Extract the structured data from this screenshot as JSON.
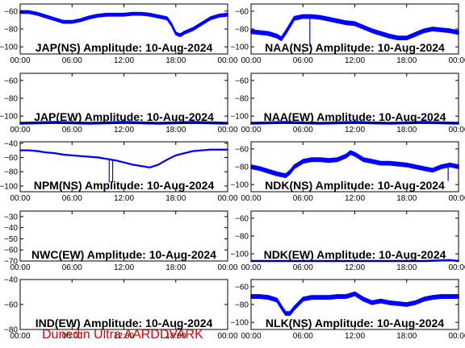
{
  "footer": "Dunedin Ultra AARDDVARK",
  "styles": {
    "trace_color": "#0000ff",
    "axis_color": "#000000",
    "footer_color": "#e00000"
  },
  "chart_data": [
    {
      "type": "line",
      "title": "JAP(NS) Amplitude: 10-Aug-2024",
      "xlim": [
        0,
        24
      ],
      "ylim": [
        -108,
        -52
      ],
      "xticks": [
        "00:00",
        "06:00",
        "12:00",
        "18:00",
        "00:00"
      ],
      "yticks": [
        -60,
        -80,
        -100
      ],
      "series": [
        {
          "x": [
            0,
            1,
            2,
            3,
            4,
            5,
            6,
            7,
            8,
            9,
            10,
            11,
            12,
            13,
            14,
            15,
            16,
            17,
            17.5,
            18,
            18.5,
            19,
            20,
            21,
            22,
            23,
            24
          ],
          "y": [
            -61,
            -61,
            -63,
            -66,
            -69,
            -72,
            -72,
            -70,
            -67,
            -65,
            -64,
            -64,
            -64,
            -63,
            -63,
            -64,
            -66,
            -68,
            -75,
            -85,
            -87,
            -84,
            -80,
            -74,
            -68,
            -65,
            -64
          ],
          "band": 3
        }
      ]
    },
    {
      "type": "line",
      "title": "NAA(NS) Amplitude: 10-Aug-2024",
      "xlim": [
        0,
        24
      ],
      "ylim": [
        -108,
        -52
      ],
      "xticks": [
        "00:00",
        "06:00",
        "12:00",
        "18:00",
        "00:00"
      ],
      "yticks": [
        -60,
        -80,
        -100
      ],
      "series": [
        {
          "x": [
            0,
            1,
            2,
            3,
            3.5,
            4,
            4.5,
            5,
            6,
            7,
            8,
            9,
            10,
            11,
            12,
            13,
            14,
            15,
            16,
            17,
            18,
            19,
            20,
            21,
            22,
            23,
            24
          ],
          "y": [
            -83,
            -84,
            -85,
            -88,
            -91,
            -84,
            -76,
            -68,
            -66,
            -66,
            -67,
            -69,
            -71,
            -73,
            -74,
            -78,
            -82,
            -85,
            -88,
            -90,
            -90,
            -86,
            -82,
            -80,
            -81,
            -82,
            -84
          ],
          "band": 4
        }
      ],
      "spikes": [
        {
          "x": 6.8,
          "y": -100
        }
      ]
    },
    {
      "type": "line",
      "title": "JAP(EW) Amplitude: 10-Aug-2024",
      "xlim": [
        0,
        24
      ],
      "ylim": [
        -108,
        -52
      ],
      "xticks": [
        "00:00",
        "06:00",
        "12:00",
        "18:00",
        "00:00"
      ],
      "yticks": [
        -60,
        -80,
        -100
      ],
      "series": [
        {
          "x": [
            0,
            4,
            8,
            12,
            16,
            20,
            24
          ],
          "y": [
            -108,
            -107,
            -108,
            -107,
            -108,
            -107,
            -108
          ],
          "band": 2
        }
      ]
    },
    {
      "type": "line",
      "title": "NAA(EW) Amplitude: 10-Aug-2024",
      "xlim": [
        0,
        24
      ],
      "ylim": [
        -108,
        -52
      ],
      "xticks": [
        "00:00",
        "06:00",
        "12:00",
        "18:00",
        "00:00"
      ],
      "yticks": [
        -60,
        -80,
        -100
      ],
      "series": [
        {
          "x": [
            0,
            4,
            8,
            12,
            16,
            20,
            24
          ],
          "y": [
            -108,
            -107,
            -108,
            -107,
            -108,
            -107,
            -108
          ],
          "band": 2
        }
      ]
    },
    {
      "type": "line",
      "title": "NPM(NS) Amplitude: 10-Aug-2024",
      "xlim": [
        0,
        24
      ],
      "ylim": [
        -108,
        -38
      ],
      "xticks": [
        "00:00",
        "06:00",
        "12:00",
        "18:00",
        "00:00"
      ],
      "yticks": [
        -40,
        -60,
        -80,
        -100
      ],
      "series": [
        {
          "x": [
            0,
            1,
            2,
            3,
            4,
            5,
            6,
            7,
            8,
            9,
            10,
            11,
            12,
            13,
            14,
            15,
            16,
            17,
            18,
            19,
            20,
            21,
            22,
            23,
            24
          ],
          "y": [
            -50,
            -50,
            -51,
            -53,
            -54,
            -56,
            -57,
            -58,
            -59,
            -60,
            -62,
            -64,
            -67,
            -70,
            -72,
            -74,
            -70,
            -63,
            -57,
            -54,
            -51,
            -50,
            -49,
            -49,
            -49
          ],
          "band": 1
        }
      ],
      "spikes": [
        {
          "x": 10.3,
          "y": -95
        },
        {
          "x": 10.7,
          "y": -95
        }
      ]
    },
    {
      "type": "line",
      "title": "NDK(NS) Amplitude: 10-Aug-2024",
      "xlim": [
        0,
        24
      ],
      "ylim": [
        -108,
        -52
      ],
      "xticks": [
        "00:00",
        "06:00",
        "12:00",
        "18:00",
        "00:00"
      ],
      "yticks": [
        -60,
        -80,
        -100
      ],
      "series": [
        {
          "x": [
            0,
            1,
            2,
            3,
            4,
            4.5,
            5,
            6,
            7,
            8,
            9,
            10,
            11,
            11.5,
            12,
            13,
            14,
            15,
            16,
            17,
            18,
            19,
            20,
            21,
            22,
            23,
            24
          ],
          "y": [
            -80,
            -82,
            -85,
            -88,
            -90,
            -86,
            -80,
            -74,
            -72,
            -72,
            -73,
            -72,
            -68,
            -64,
            -66,
            -72,
            -74,
            -76,
            -76,
            -77,
            -78,
            -80,
            -82,
            -84,
            -80,
            -78,
            -80
          ],
          "band": 4
        }
      ],
      "spikes": [
        {
          "x": 22.8,
          "y": -96
        }
      ]
    },
    {
      "type": "line",
      "title": "NWC(EW) Amplitude: 10-Aug-2024",
      "xlim": [
        0,
        24
      ],
      "ylim": [
        -70,
        -25
      ],
      "xticks": [
        "00:00",
        "06:00",
        "12:00",
        "18:00",
        "00:00"
      ],
      "yticks": [
        -30,
        -40,
        -50,
        -60,
        -70
      ],
      "series": []
    },
    {
      "type": "line",
      "title": "NDK(EW) Amplitude: 10-Aug-2024",
      "xlim": [
        0,
        24
      ],
      "ylim": [
        -108,
        -52
      ],
      "xticks": [
        "00:00",
        "06:00",
        "12:00",
        "18:00",
        "00:00"
      ],
      "yticks": [
        -60,
        -80,
        -100
      ],
      "series": [
        {
          "x": [
            0,
            10,
            20,
            23,
            24
          ],
          "y": [
            -108,
            -108,
            -108,
            -107,
            -108
          ],
          "band": 1
        }
      ]
    },
    {
      "type": "line",
      "title": "IND(EW) Amplitude: 10-Aug-2024",
      "xlim": [
        0,
        24
      ],
      "ylim": [
        -80,
        -40
      ],
      "xticks": [
        "00:00",
        "06:00",
        "12:00",
        "18:00",
        "00:00"
      ],
      "yticks": [
        -40,
        -60,
        -80
      ],
      "series": []
    },
    {
      "type": "line",
      "title": "NLK(NS) Amplitude: 10-Aug-2024",
      "xlim": [
        0,
        24
      ],
      "ylim": [
        -108,
        -52
      ],
      "xticks": [
        "00:00",
        "06:00",
        "12:00",
        "18:00",
        "00:00"
      ],
      "yticks": [
        -60,
        -80,
        -100
      ],
      "series": [
        {
          "x": [
            0,
            1,
            2,
            3,
            3.5,
            4,
            4.5,
            5,
            6,
            7,
            8,
            9,
            10,
            11,
            12,
            13,
            14,
            15,
            16,
            17,
            18,
            19,
            20,
            21,
            22,
            23,
            24
          ],
          "y": [
            -71,
            -71,
            -72,
            -75,
            -83,
            -90,
            -90,
            -84,
            -74,
            -72,
            -72,
            -72,
            -71,
            -71,
            -68,
            -74,
            -78,
            -76,
            -78,
            -79,
            -80,
            -78,
            -74,
            -72,
            -71,
            -71,
            -71
          ],
          "band": 4
        }
      ]
    }
  ]
}
